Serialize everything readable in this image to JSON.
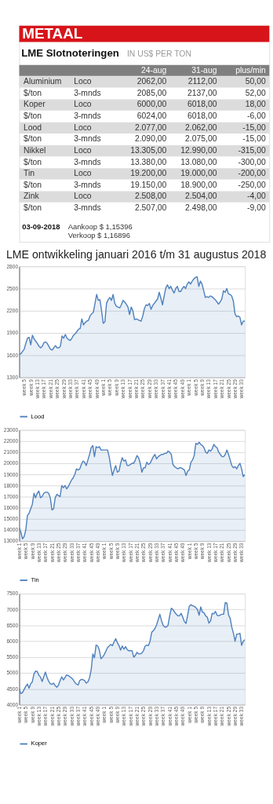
{
  "chart_data": [
    {
      "type": "other",
      "title": "METAAL",
      "subtitle": "LME Slotnoteringen",
      "annotations": [
        "IN US$ PER TON",
        "24-aug",
        "31-aug",
        "plus/min",
        "Aluminium",
        "Loco",
        "2062,00",
        "2112,00",
        "50,00",
        "$/ton",
        "3-mnds",
        "2085,00",
        "2137,00",
        "52,00",
        "Koper",
        "Loco",
        "6000,00",
        "6018,00",
        "18,00",
        "$/ton",
        "3-mnds",
        "6024,00",
        "6018,00",
        "-6,00",
        "Lood",
        "Loco",
        "2.077,00",
        "2.062,00",
        "-15,00",
        "$/ton",
        "3-mnds",
        "2.090,00",
        "2.075,00",
        "-15,00",
        "Nikkel",
        "Loco",
        "13.305,00",
        "12.990,00",
        "-315,00",
        "$/ton",
        "3-mnds",
        "13.380,00",
        "13.080,00",
        "-300,00",
        "Tin",
        "Loco",
        "19.200,00",
        "19.000,00",
        "-200,00",
        "$/ton",
        "3-mnds",
        "19.150,00",
        "18.900,00",
        "-250,00",
        "Zink",
        "Loco",
        "2.508,00",
        "2.504,00",
        "-4,00",
        "$/ton",
        "3-mnds",
        "2.507,00",
        "2.498,00",
        "-9,00",
        "03-09-2018",
        "Aankoop $ 1,15396",
        "Verkoop $ 1,16896"
      ]
    },
    {
      "type": "area",
      "title": "LME ontwikkeling januari 2016 t/m 31 augustus 2018",
      "ylim": [
        1300,
        2800
      ],
      "yticks": [
        1300,
        1600,
        1900,
        2200,
        2500,
        2800
      ],
      "grid": "y",
      "legend": "bottom",
      "categories": [
        null,
        null,
        null,
        "week 5",
        null,
        null,
        null,
        "week 9",
        null,
        null,
        null,
        "week 13",
        null,
        null,
        null,
        "week 17",
        null,
        null,
        null,
        "week 21",
        null,
        null,
        null,
        "week 25",
        null,
        null,
        null,
        "week 29",
        null,
        null,
        null,
        "week 33",
        null,
        null,
        null,
        "week 37",
        null,
        null,
        null,
        "week 41",
        null,
        null,
        null,
        "week 45",
        null,
        null,
        null,
        "week 49",
        null,
        null,
        null,
        "week 1",
        null,
        null,
        null,
        "week 5",
        null,
        null,
        null,
        "week 9",
        null,
        null,
        null,
        "week 13",
        null,
        null,
        null,
        "week 17",
        null,
        null,
        null,
        "week 21",
        null,
        null,
        null,
        "week 25",
        null,
        null,
        null,
        "week 29",
        null,
        null,
        null,
        "week 33",
        null,
        null,
        null,
        "week 37",
        null,
        null,
        null,
        "week 41",
        null,
        null,
        null,
        "week 45",
        null,
        null,
        null,
        "week 49",
        null,
        null,
        null,
        "week 1",
        null,
        null,
        null,
        "week 5",
        null,
        null,
        null,
        "week 9",
        null,
        null,
        null,
        "week 13",
        null,
        null,
        null,
        "week 17",
        null,
        null,
        null,
        "week 21",
        null,
        null,
        null,
        "week 25",
        null,
        null,
        null,
        "week 29",
        null,
        null,
        null,
        "week 33",
        null,
        null
      ],
      "series": [
        {
          "name": "Lood",
          "color": "#4f81bd",
          "values": [
            1610,
            1620,
            1650,
            1680,
            1760,
            1830,
            1840,
            1740,
            1870,
            1820,
            1790,
            1760,
            1720,
            1700,
            1720,
            1770,
            1780,
            1760,
            1720,
            1680,
            1670,
            1700,
            1730,
            1700,
            1700,
            1720,
            1860,
            1830,
            1880,
            1830,
            1810,
            1800,
            1830,
            1870,
            1890,
            1920,
            1950,
            1960,
            2090,
            2010,
            2040,
            2060,
            2070,
            2130,
            2160,
            2180,
            2300,
            2420,
            2340,
            2350,
            2200,
            2030,
            2050,
            2300,
            2350,
            2380,
            2340,
            2420,
            2300,
            2260,
            2250,
            2240,
            2280,
            2340,
            2320,
            2290,
            2250,
            2150,
            2250,
            2200,
            2080,
            2090,
            2080,
            2070,
            2060,
            2130,
            2230,
            2280,
            2270,
            2300,
            2220,
            2270,
            2300,
            2330,
            2360,
            2450,
            2370,
            2280,
            2400,
            2510,
            2550,
            2500,
            2530,
            2480,
            2440,
            2500,
            2530,
            2460,
            2460,
            2500,
            2530,
            2500,
            2560,
            2590,
            2560,
            2600,
            2630,
            2650,
            2660,
            2530,
            2600,
            2560,
            2470,
            2380,
            2390,
            2380,
            2400,
            2390,
            2370,
            2350,
            2320,
            2290,
            2320,
            2360,
            2470,
            2450,
            2500,
            2430,
            2420,
            2400,
            2330,
            2160,
            2120,
            2130,
            2110,
            2010,
            2060,
            2060
          ]
        }
      ]
    },
    {
      "type": "area",
      "ylim": [
        13000,
        23000
      ],
      "yticks": [
        13000,
        14000,
        15000,
        16000,
        17000,
        18000,
        19000,
        20000,
        21000,
        22000,
        23000
      ],
      "grid": "y",
      "legend": "bottom",
      "categories": [
        "week 1",
        null,
        null,
        null,
        "week 5",
        null,
        null,
        null,
        "week 9",
        null,
        null,
        null,
        "week 13",
        null,
        null,
        null,
        "week 17",
        null,
        null,
        null,
        "week 21",
        null,
        null,
        null,
        "week 25",
        null,
        null,
        null,
        "week 29",
        null,
        null,
        null,
        "week 33",
        null,
        null,
        null,
        "week 37",
        null,
        null,
        null,
        "week 41",
        null,
        null,
        null,
        "week 45",
        null,
        null,
        null,
        "week 49",
        null,
        null,
        null,
        "week 1",
        null,
        null,
        null,
        "week 5",
        null,
        null,
        null,
        "week 9",
        null,
        null,
        null,
        "week 13",
        null,
        null,
        null,
        "week 17",
        null,
        null,
        null,
        "week 21",
        null,
        null,
        null,
        "week 25",
        null,
        null,
        null,
        "week 29",
        null,
        null,
        null,
        "week 33",
        null,
        null,
        null,
        "week 37",
        null,
        null,
        null,
        "week 41",
        null,
        null,
        null,
        "week 45",
        null,
        null,
        null,
        "week 49",
        null,
        null,
        null,
        "week 1",
        null,
        null,
        null,
        "week 5",
        null,
        null,
        null,
        "week 9",
        null,
        null,
        null,
        "week 13",
        null,
        null,
        null,
        "week 17",
        null,
        null,
        null,
        "week 21",
        null,
        null,
        null,
        "week 25",
        null,
        null,
        null,
        "week 29",
        null,
        null,
        null,
        "week 33",
        null,
        null
      ],
      "series": [
        {
          "name": "Tin",
          "color": "#4f81bd",
          "values": [
            14200,
            13800,
            13200,
            13400,
            14000,
            15300,
            15500,
            15900,
            16300,
            17300,
            16900,
            17300,
            17500,
            16900,
            17000,
            17300,
            17400,
            17400,
            17300,
            16900,
            15800,
            15900,
            16900,
            17200,
            17100,
            17000,
            18000,
            17800,
            18000,
            17700,
            17900,
            18200,
            18500,
            18700,
            19000,
            19500,
            19400,
            19500,
            19900,
            20200,
            20100,
            19800,
            20300,
            20800,
            21400,
            21600,
            20600,
            21500,
            21400,
            21500,
            21200,
            21200,
            21200,
            21200,
            21200,
            20600,
            19700,
            18900,
            19400,
            19800,
            19200,
            19300,
            20000,
            20500,
            20200,
            20300,
            19800,
            19800,
            19900,
            20000,
            20000,
            20300,
            20700,
            20500,
            20000,
            19200,
            19600,
            19600,
            20100,
            19900,
            20000,
            20300,
            20600,
            20800,
            20400,
            20600,
            20700,
            20800,
            20800,
            20900,
            20900,
            21100,
            21000,
            20800,
            19900,
            19700,
            19600,
            19500,
            19600,
            19600,
            19500,
            19400,
            18900,
            19300,
            19400,
            20100,
            20300,
            20700,
            21800,
            21700,
            21900,
            21700,
            21600,
            21400,
            21000,
            20900,
            21200,
            21100,
            21300,
            21700,
            21500,
            21400,
            21000,
            20800,
            20600,
            20600,
            20800,
            21200,
            20800,
            20300,
            19800,
            19600,
            19700,
            19500,
            19800,
            20000,
            19500,
            18800,
            19000
          ]
        }
      ]
    },
    {
      "type": "area",
      "ylim": [
        4000,
        7500
      ],
      "yticks": [
        4000,
        4500,
        5000,
        5500,
        6000,
        6500,
        7000,
        7500
      ],
      "grid": "y",
      "legend": "bottom",
      "categories": [
        "week 1",
        null,
        null,
        null,
        "week 5",
        null,
        null,
        null,
        "week 9",
        null,
        null,
        null,
        "week 13",
        null,
        null,
        null,
        "week 17",
        null,
        null,
        null,
        "week 21",
        null,
        null,
        null,
        "week 25",
        null,
        null,
        null,
        "week 29",
        null,
        null,
        null,
        "week 33",
        null,
        null,
        null,
        "week 37",
        null,
        null,
        null,
        "week 41",
        null,
        null,
        null,
        "week 45",
        null,
        null,
        null,
        "week 49",
        null,
        null,
        null,
        "week 1",
        null,
        null,
        null,
        "week 5",
        null,
        null,
        null,
        "week 9",
        null,
        null,
        null,
        "week 13",
        null,
        null,
        null,
        "week 17",
        null,
        null,
        null,
        "week 21",
        null,
        null,
        null,
        "week 25",
        null,
        null,
        null,
        "week 29",
        null,
        null,
        null,
        "week 33",
        null,
        null,
        null,
        "week 37",
        null,
        null,
        null,
        "week 41",
        null,
        null,
        null,
        "week 45",
        null,
        null,
        null,
        "week 49",
        null,
        null,
        null,
        "week 1",
        null,
        null,
        null,
        "week 5",
        null,
        null,
        null,
        "week 9",
        null,
        null,
        null,
        "week 13",
        null,
        null,
        null,
        "week 17",
        null,
        null,
        null,
        "week 21",
        null,
        null,
        null,
        "week 25",
        null,
        null,
        null,
        "week 29",
        null,
        null,
        null,
        "week 33",
        null,
        null
      ],
      "series": [
        {
          "name": "Koper",
          "color": "#4f81bd",
          "values": [
            4500,
            4350,
            4380,
            4480,
            4580,
            4650,
            4520,
            4660,
            4720,
            4970,
            5060,
            5050,
            4930,
            4870,
            4730,
            4880,
            5030,
            4860,
            4740,
            4660,
            4640,
            4680,
            4600,
            4550,
            4620,
            4760,
            4880,
            4780,
            4860,
            4940,
            4920,
            4880,
            4840,
            4790,
            4700,
            4650,
            4620,
            4760,
            4800,
            4790,
            4760,
            4680,
            4720,
            4850,
            5100,
            5600,
            5480,
            5880,
            5850,
            5720,
            5450,
            5500,
            5580,
            5690,
            5800,
            5850,
            5900,
            5860,
            5980,
            6080,
            5960,
            5860,
            5720,
            5850,
            5750,
            5830,
            5740,
            5700,
            5700,
            5700,
            5500,
            5550,
            5650,
            5600,
            5600,
            5630,
            5700,
            5850,
            5880,
            5860,
            6000,
            6280,
            6330,
            6400,
            6520,
            6680,
            6850,
            6650,
            6500,
            6450,
            6450,
            6500,
            6800,
            7040,
            7000,
            6920,
            6850,
            6800,
            6800,
            6880,
            6760,
            6620,
            6560,
            6820,
            7100,
            7150,
            7120,
            7100,
            7060,
            7000,
            6820,
            7080,
            6920,
            6900,
            6800,
            6760,
            6570,
            6640,
            6880,
            6860,
            6940,
            6820,
            6800,
            6830,
            6850,
            6850,
            7220,
            7200,
            6830,
            6720,
            6440,
            6250,
            6000,
            6220,
            6230,
            6250,
            5870,
            6000,
            6050
          ]
        }
      ]
    }
  ]
}
